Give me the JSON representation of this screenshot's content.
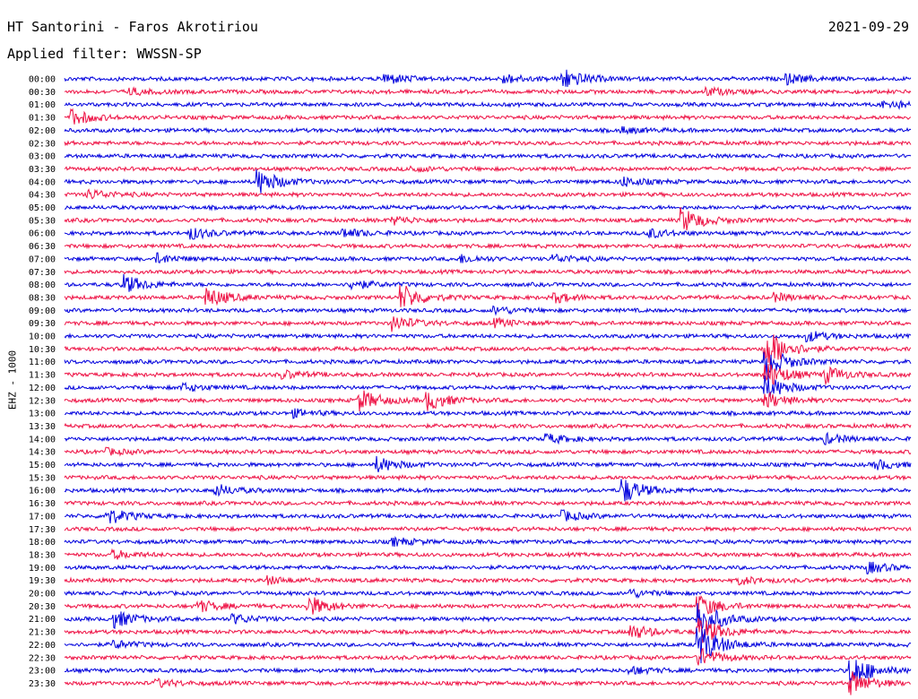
{
  "header": {
    "station": "HT Santorini - Faros Akrotiriou",
    "date": "2021-09-29",
    "filter": "Applied filter: WWSSN-SP"
  },
  "channel_label": "EHZ - 1000",
  "colors": {
    "even_trace": "#0000dd",
    "odd_trace": "#ee1144"
  },
  "rows": [
    {
      "time": "00:00",
      "events": [
        {
          "t": 0.38,
          "a": 6
        },
        {
          "t": 0.52,
          "a": 5
        },
        {
          "t": 0.59,
          "a": 11
        },
        {
          "t": 0.855,
          "a": 5
        }
      ]
    },
    {
      "time": "00:30",
      "events": [
        {
          "t": 0.08,
          "a": 3
        },
        {
          "t": 0.76,
          "a": 4
        }
      ]
    },
    {
      "time": "01:00",
      "events": [
        {
          "t": 0.97,
          "a": 5
        }
      ]
    },
    {
      "time": "01:30",
      "events": [
        {
          "t": 0.01,
          "a": 8
        }
      ]
    },
    {
      "time": "02:00",
      "events": [
        {
          "t": 0.66,
          "a": 3
        }
      ]
    },
    {
      "time": "02:30",
      "events": []
    },
    {
      "time": "03:00",
      "events": []
    },
    {
      "time": "03:30",
      "events": [
        {
          "t": 0.41,
          "a": 3
        }
      ]
    },
    {
      "time": "04:00",
      "events": [
        {
          "t": 0.23,
          "a": 13
        },
        {
          "t": 0.66,
          "a": 5
        }
      ]
    },
    {
      "time": "04:30",
      "events": [
        {
          "t": 0.03,
          "a": 5
        }
      ]
    },
    {
      "time": "05:00",
      "events": []
    },
    {
      "time": "05:30",
      "events": [
        {
          "t": 0.73,
          "a": 13
        },
        {
          "t": 0.39,
          "a": 4
        }
      ]
    },
    {
      "time": "06:00",
      "events": [
        {
          "t": 0.15,
          "a": 6
        },
        {
          "t": 0.33,
          "a": 5
        },
        {
          "t": 0.69,
          "a": 5
        }
      ]
    },
    {
      "time": "06:30",
      "events": []
    },
    {
      "time": "07:00",
      "events": [
        {
          "t": 0.11,
          "a": 5
        },
        {
          "t": 0.47,
          "a": 4
        },
        {
          "t": 0.58,
          "a": 4
        }
      ]
    },
    {
      "time": "07:30",
      "events": []
    },
    {
      "time": "08:00",
      "events": [
        {
          "t": 0.07,
          "a": 10
        },
        {
          "t": 0.34,
          "a": 5
        }
      ]
    },
    {
      "time": "08:30",
      "events": [
        {
          "t": 0.17,
          "a": 10
        },
        {
          "t": 0.4,
          "a": 13
        },
        {
          "t": 0.58,
          "a": 5
        },
        {
          "t": 0.84,
          "a": 4
        }
      ]
    },
    {
      "time": "09:00",
      "events": [
        {
          "t": 0.51,
          "a": 4
        }
      ]
    },
    {
      "time": "09:30",
      "events": [
        {
          "t": 0.39,
          "a": 8
        },
        {
          "t": 0.51,
          "a": 4
        }
      ]
    },
    {
      "time": "10:00",
      "events": [
        {
          "t": 0.88,
          "a": 5
        }
      ]
    },
    {
      "time": "10:30",
      "events": [
        {
          "t": 0.83,
          "a": 22
        }
      ]
    },
    {
      "time": "11:00",
      "events": [
        {
          "t": 0.83,
          "a": 16
        }
      ]
    },
    {
      "time": "11:30",
      "events": [
        {
          "t": 0.83,
          "a": 14
        },
        {
          "t": 0.9,
          "a": 8
        },
        {
          "t": 0.26,
          "a": 4
        }
      ]
    },
    {
      "time": "12:00",
      "events": [
        {
          "t": 0.83,
          "a": 12
        },
        {
          "t": 0.14,
          "a": 4
        }
      ]
    },
    {
      "time": "12:30",
      "events": [
        {
          "t": 0.35,
          "a": 11
        },
        {
          "t": 0.43,
          "a": 10
        },
        {
          "t": 0.83,
          "a": 8
        }
      ]
    },
    {
      "time": "13:00",
      "events": [
        {
          "t": 0.27,
          "a": 4
        }
      ]
    },
    {
      "time": "13:30",
      "events": []
    },
    {
      "time": "14:00",
      "events": [
        {
          "t": 0.57,
          "a": 5
        },
        {
          "t": 0.9,
          "a": 5
        }
      ]
    },
    {
      "time": "14:30",
      "events": [
        {
          "t": 0.05,
          "a": 3
        }
      ]
    },
    {
      "time": "15:00",
      "events": [
        {
          "t": 0.37,
          "a": 8
        },
        {
          "t": 0.96,
          "a": 5
        }
      ]
    },
    {
      "time": "15:30",
      "events": []
    },
    {
      "time": "16:00",
      "events": [
        {
          "t": 0.66,
          "a": 14
        },
        {
          "t": 0.18,
          "a": 6
        }
      ]
    },
    {
      "time": "16:30",
      "events": []
    },
    {
      "time": "17:00",
      "events": [
        {
          "t": 0.05,
          "a": 9
        },
        {
          "t": 0.59,
          "a": 5
        }
      ]
    },
    {
      "time": "17:30",
      "events": []
    },
    {
      "time": "18:00",
      "events": [
        {
          "t": 0.39,
          "a": 4
        }
      ]
    },
    {
      "time": "18:30",
      "events": [
        {
          "t": 0.06,
          "a": 4
        }
      ]
    },
    {
      "time": "19:00",
      "events": [
        {
          "t": 0.95,
          "a": 6
        }
      ]
    },
    {
      "time": "19:30",
      "events": [
        {
          "t": 0.24,
          "a": 4
        },
        {
          "t": 0.8,
          "a": 4
        }
      ]
    },
    {
      "time": "20:00",
      "events": [
        {
          "t": 0.67,
          "a": 4
        }
      ]
    },
    {
      "time": "20:30",
      "events": [
        {
          "t": 0.29,
          "a": 10
        },
        {
          "t": 0.16,
          "a": 6
        },
        {
          "t": 0.75,
          "a": 12
        }
      ]
    },
    {
      "time": "21:00",
      "events": [
        {
          "t": 0.06,
          "a": 9
        },
        {
          "t": 0.2,
          "a": 5
        },
        {
          "t": 0.75,
          "a": 20
        }
      ]
    },
    {
      "time": "21:30",
      "events": [
        {
          "t": 0.67,
          "a": 8
        },
        {
          "t": 0.75,
          "a": 16
        }
      ]
    },
    {
      "time": "22:00",
      "events": [
        {
          "t": 0.75,
          "a": 22
        },
        {
          "t": 0.06,
          "a": 4
        }
      ]
    },
    {
      "time": "22:30",
      "events": [
        {
          "t": 0.75,
          "a": 10
        }
      ]
    },
    {
      "time": "23:00",
      "events": [
        {
          "t": 0.93,
          "a": 18
        },
        {
          "t": 0.67,
          "a": 4
        }
      ]
    },
    {
      "time": "23:30",
      "events": [
        {
          "t": 0.93,
          "a": 12
        },
        {
          "t": 0.11,
          "a": 4
        }
      ]
    }
  ]
}
